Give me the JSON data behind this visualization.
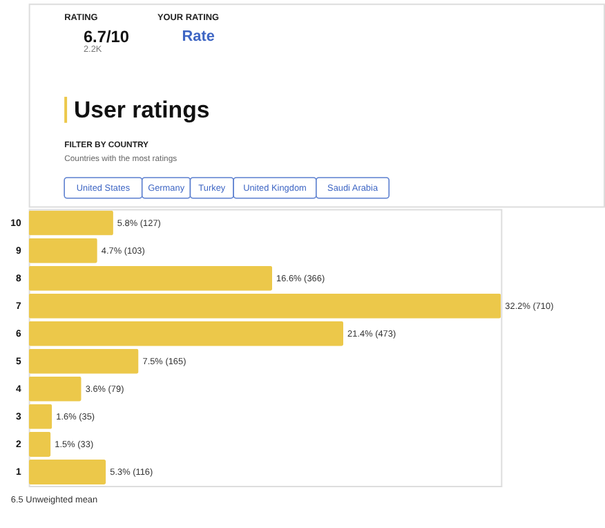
{
  "chart_data": {
    "type": "bar",
    "orientation": "horizontal",
    "title": "User ratings",
    "categories": [
      "10",
      "9",
      "8",
      "7",
      "6",
      "5",
      "4",
      "3",
      "2",
      "1"
    ],
    "values": [
      127,
      103,
      366,
      710,
      473,
      165,
      79,
      35,
      33,
      116
    ],
    "value_labels": [
      "5.8% (127)",
      "4.7% (103)",
      "16.6% (366)",
      "32.2% (710)",
      "21.4% (473)",
      "7.5% (165)",
      "3.6% (79)",
      "1.6% (35)",
      "1.5% (33)",
      "5.3% (116)"
    ],
    "color": "#ecc84a",
    "annotations": [
      "RATING",
      "6.7/10",
      "2.2K",
      "YOUR RATING",
      "Rate",
      "FILTER BY COUNTRY",
      "Countries with the most ratings",
      "United States",
      "Germany",
      "Turkey",
      "United Kingdom",
      "Saudi Arabia",
      "6.5 Unweighted mean"
    ],
    "grid": false
  }
}
